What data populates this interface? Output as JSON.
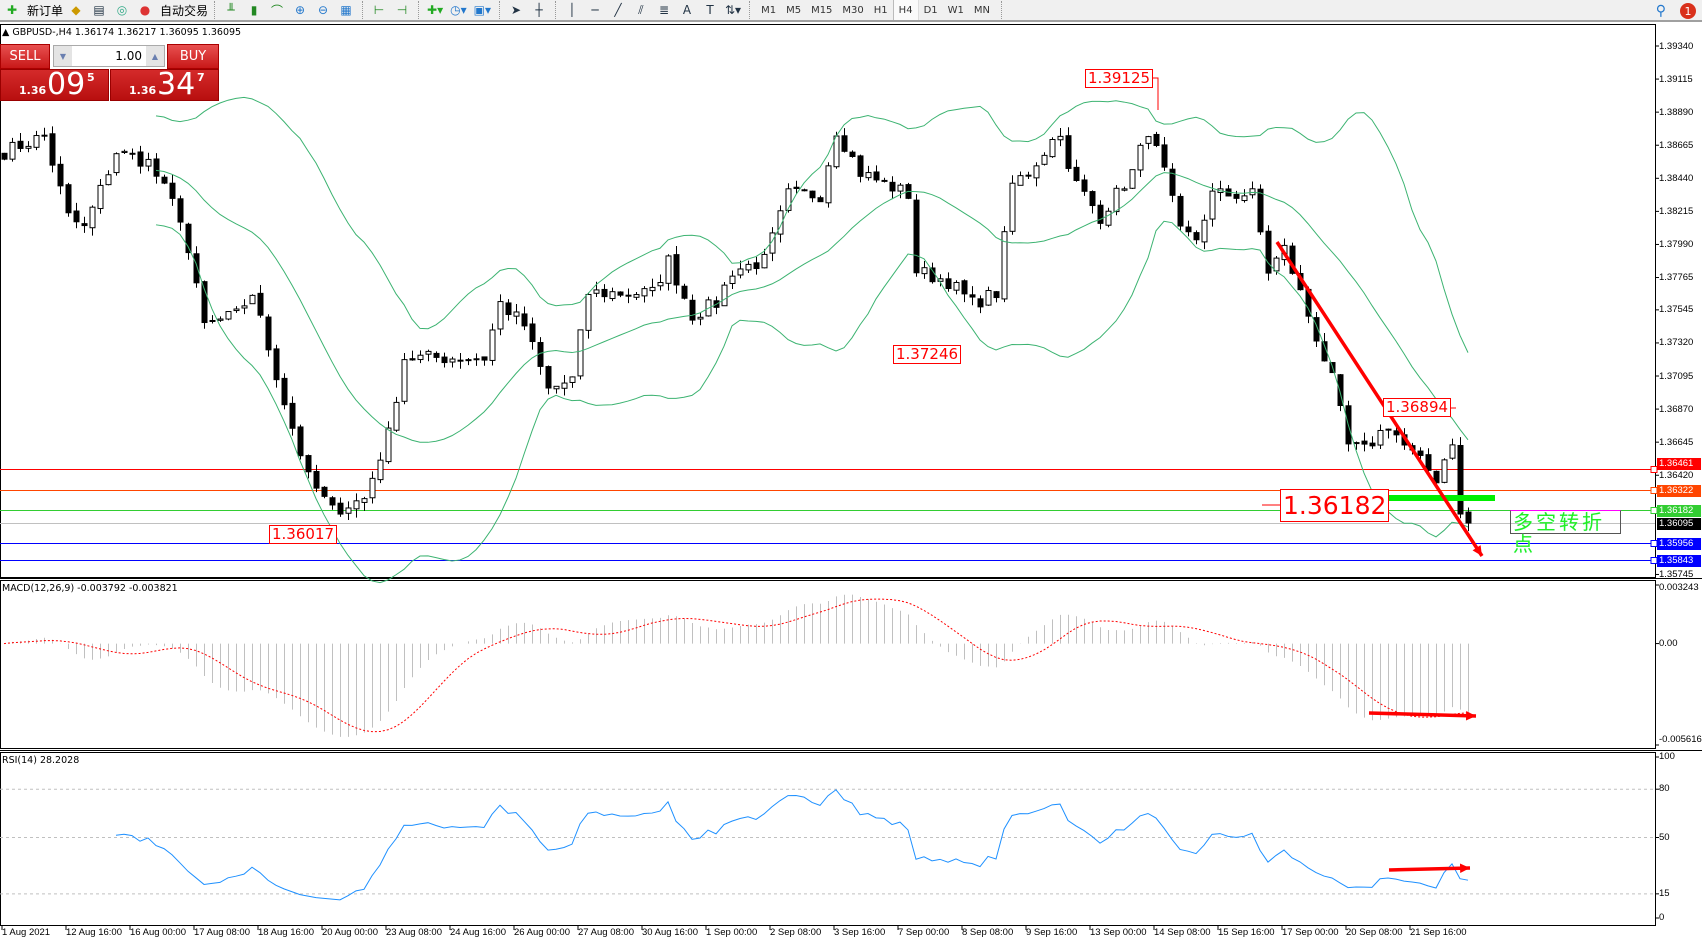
{
  "toolbar": {
    "new_order_label": "新订单",
    "auto_trading_label": "自动交易",
    "icons": [
      "new-order-icon",
      "expert-icon",
      "navigator-icon",
      "signal-icon",
      "auto-trading-icon",
      "bar-chart-icon",
      "candlestick-icon",
      "line-chart-icon",
      "zoom-in-icon",
      "zoom-out-icon",
      "tile-windows-icon",
      "auto-scroll-icon",
      "chart-shift-icon",
      "indicators-icon",
      "periods-icon",
      "templates-icon",
      "cursor-icon",
      "crosshair-icon",
      "vertical-line-icon",
      "horizontal-line-icon",
      "trendline-icon",
      "fibonacci-icon",
      "fibo-channel-icon",
      "text-icon",
      "text-label-icon",
      "arrows-icon"
    ],
    "timeframes": [
      "M1",
      "M5",
      "M15",
      "M30",
      "H1",
      "H4",
      "D1",
      "W1",
      "MN"
    ],
    "active_timeframe": "H4",
    "notification_count": "1"
  },
  "symbol_line": "GBPUSD-,H4  1.36174 1.36217 1.36095 1.36095",
  "one_click": {
    "sell_label": "SELL",
    "buy_label": "BUY",
    "lot": "1.00",
    "sell_price": {
      "small": "1.36",
      "big": "09",
      "sup": "5"
    },
    "buy_price": {
      "small": "1.36",
      "big": "34",
      "sup": "7"
    }
  },
  "price_axis": {
    "ticks": [
      "1.39340",
      "1.39115",
      "1.38890",
      "1.38665",
      "1.38440",
      "1.38215",
      "1.37990",
      "1.37765",
      "1.37545",
      "1.37320",
      "1.37095",
      "1.36870",
      "1.36645",
      "1.36420",
      "1.35745"
    ],
    "range": [
      1.35745,
      1.3934
    ]
  },
  "levels": [
    {
      "price": "1.36461",
      "color": "#ff0000"
    },
    {
      "price": "1.36322",
      "color": "#ff4500"
    },
    {
      "price": "1.36182",
      "color": "#32cd32"
    },
    {
      "price": "1.36095",
      "color": "#000000",
      "line": "#c0c0c0"
    },
    {
      "price": "1.35956",
      "color": "#0000ff"
    },
    {
      "price": "1.35843",
      "color": "#0000ff"
    }
  ],
  "annotations": {
    "high_label": "1.39125",
    "low_label_1": "1.37246",
    "low_label_2": "1.36017",
    "high_label_2": "1.36894",
    "pivot_label": "1.36182",
    "pivot_text": "多空转折点"
  },
  "price_series": {
    "type": "candlestick",
    "approx_close_anchors": [
      [
        0,
        1.3862
      ],
      [
        5,
        1.3873
      ],
      [
        8,
        1.3818
      ],
      [
        10,
        1.381
      ],
      [
        14,
        1.3862
      ],
      [
        18,
        1.3855
      ],
      [
        22,
        1.3818
      ],
      [
        25,
        1.3744
      ],
      [
        29,
        1.3751
      ],
      [
        31,
        1.3766
      ],
      [
        35,
        1.3692
      ],
      [
        38,
        1.364
      ],
      [
        41,
        1.3618
      ],
      [
        45,
        1.3626
      ],
      [
        48,
        1.367
      ],
      [
        50,
        1.3722
      ],
      [
        60,
        1.3722
      ],
      [
        62,
        1.3759
      ],
      [
        65,
        1.3744
      ],
      [
        68,
        1.37
      ],
      [
        71,
        1.3707
      ],
      [
        73,
        1.3766
      ],
      [
        81,
        1.3766
      ],
      [
        83,
        1.3788
      ],
      [
        86,
        1.3751
      ],
      [
        89,
        1.3759
      ],
      [
        91,
        1.3781
      ],
      [
        95,
        1.3788
      ],
      [
        98,
        1.3833
      ],
      [
        102,
        1.3833
      ],
      [
        104,
        1.3877
      ],
      [
        107,
        1.3848
      ],
      [
        113,
        1.3833
      ],
      [
        114,
        1.3781
      ],
      [
        118,
        1.3774
      ],
      [
        121,
        1.3759
      ],
      [
        124,
        1.3766
      ],
      [
        126,
        1.384
      ],
      [
        128,
        1.3848
      ],
      [
        132,
        1.3877
      ],
      [
        133,
        1.3848
      ],
      [
        137,
        1.3818
      ],
      [
        141,
        1.3848
      ],
      [
        143,
        1.3877
      ],
      [
        145,
        1.3848
      ],
      [
        147,
        1.3807
      ],
      [
        149,
        1.3803
      ],
      [
        151,
        1.3833
      ],
      [
        156,
        1.3833
      ],
      [
        158,
        1.3781
      ],
      [
        160,
        1.3796
      ],
      [
        163,
        1.3751
      ],
      [
        166,
        1.3707
      ],
      [
        168,
        1.3662
      ],
      [
        170,
        1.3659
      ],
      [
        173,
        1.3677
      ],
      [
        175,
        1.3662
      ],
      [
        179,
        1.364
      ],
      [
        181,
        1.3666
      ],
      [
        182,
        1.3614
      ],
      [
        183,
        1.36095
      ]
    ],
    "bollinger_color": "#3cb371"
  },
  "macd": {
    "title": "MACD(12,26,9) -0.003792 -0.003821",
    "axis_ticks": [
      "0.003243",
      "0.00",
      "-0.005616"
    ],
    "range": [
      -0.005616,
      0.003243
    ],
    "histogram_color": "#c0c0c0",
    "signal_color": "#ff0000"
  },
  "rsi": {
    "title": "RSI(14) 28.2028",
    "axis_ticks": [
      "100",
      "80",
      "50",
      "15",
      "0"
    ],
    "levels": [
      80,
      50,
      15
    ],
    "line_color": "#1e90ff"
  },
  "time_axis": [
    "1 Aug 2021",
    "12 Aug 16:00",
    "16 Aug 00:00",
    "17 Aug 08:00",
    "18 Aug 16:00",
    "20 Aug 00:00",
    "23 Aug 08:00",
    "24 Aug 16:00",
    "26 Aug 00:00",
    "27 Aug 08:00",
    "30 Aug 16:00",
    "1 Sep 00:00",
    "2 Sep 08:00",
    "3 Sep 16:00",
    "7 Sep 00:00",
    "8 Sep 08:00",
    "9 Sep 16:00",
    "13 Sep 00:00",
    "14 Sep 08:00",
    "15 Sep 16:00",
    "17 Sep 00:00",
    "20 Sep 08:00",
    "21 Sep 16:00"
  ]
}
